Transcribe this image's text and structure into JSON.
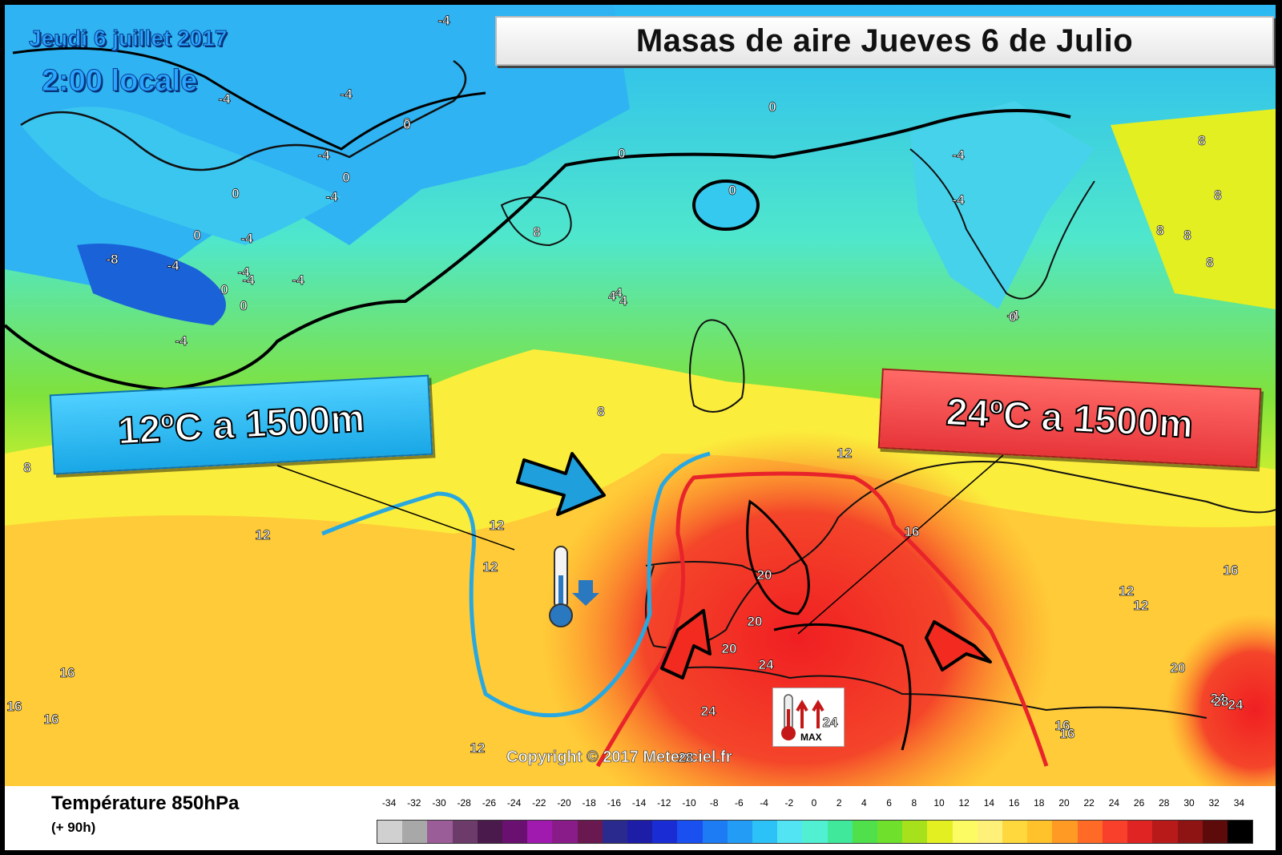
{
  "run": {
    "date": "Jeudi 6 juillet 2017",
    "time": "2:00 locale"
  },
  "title": "Masas de aire Jueves 6 de Julio",
  "callouts": {
    "cold": {
      "text": "12ºC a 1500m",
      "color": "#1fb1ec"
    },
    "hot": {
      "text": "24ºC a 1500m",
      "color": "#ec3f41"
    }
  },
  "badge": {
    "text": "MAX"
  },
  "copyright": "Copyright © 2017 Meteociel.fr",
  "contour_labels": [
    "-4",
    "-4",
    "-4",
    "0",
    "-4",
    "0",
    "-4",
    "0",
    "-4",
    "0",
    "-8",
    "-4",
    "0",
    "-4",
    "-4",
    "-4",
    "0",
    "-4",
    "0",
    "0",
    "-4",
    "-4",
    "0",
    "-4",
    "0",
    "0",
    "8",
    "8",
    "8",
    "8",
    "8",
    "8",
    "4",
    "4",
    "8",
    "12",
    "12",
    "12",
    "12",
    "16",
    "16",
    "16",
    "16",
    "16",
    "16",
    "20",
    "20",
    "20",
    "24",
    "24",
    "24",
    "24",
    "28",
    "12",
    "12",
    "12",
    "16",
    "20",
    "24",
    "28",
    "4",
    "8"
  ],
  "legend": {
    "title": "Température 850hPa",
    "subtitle": "(+ 90h)",
    "ticks": [
      "-34",
      "-32",
      "-30",
      "-28",
      "-26",
      "-24",
      "-22",
      "-20",
      "-18",
      "-16",
      "-14",
      "-12",
      "-10",
      "-8",
      "-6",
      "-4",
      "-2",
      "0",
      "2",
      "4",
      "6",
      "8",
      "10",
      "12",
      "14",
      "16",
      "18",
      "20",
      "22",
      "24",
      "26",
      "28",
      "30",
      "32",
      "34"
    ],
    "colors": [
      "#d0d0d0",
      "#a8a8a8",
      "#9a5d98",
      "#6c3b6a",
      "#4a1a4c",
      "#6a1070",
      "#a11ab0",
      "#8a1c8a",
      "#6a1850",
      "#2a2a8e",
      "#1d1da8",
      "#1a2dd4",
      "#1a4ff0",
      "#1d7bf4",
      "#229cf4",
      "#2dc2f7",
      "#52e4f2",
      "#52f0d2",
      "#3fe89a",
      "#4fe04c",
      "#6fe02b",
      "#a6e11c",
      "#e4ef22",
      "#fdfb63",
      "#fff07a",
      "#ffd83d",
      "#ffc22a",
      "#ff9a24",
      "#ff6a27",
      "#f8402a",
      "#e02424",
      "#b81a1a",
      "#8e1414",
      "#5c0a0a",
      "#000000"
    ]
  },
  "colors": {
    "cold_arrow": "#1fa0dc",
    "warm_arrow": "#f22a20",
    "cold_line": "#29a8e0",
    "warm_line": "#e8242a"
  }
}
